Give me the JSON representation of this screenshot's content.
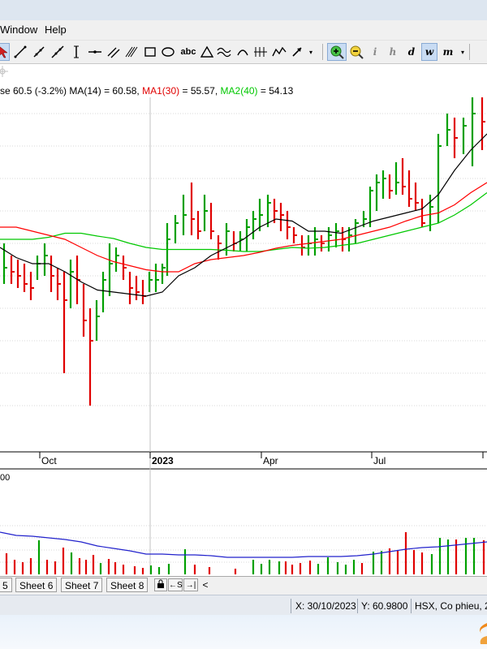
{
  "menu": {
    "items": [
      "Window",
      "Help"
    ]
  },
  "toolbar": {
    "letter_tools": [
      "abc",
      "d",
      "w",
      "m"
    ],
    "italic_tools": [
      "i",
      "h"
    ]
  },
  "legend": {
    "close_partial": "se 60.5 (-3.2%)",
    "ma14_text": "MA(14) = 60.58,",
    "ma1_label": "MA1(30)",
    "ma1_value": " = 55.57,",
    "ma2_label": "MA2(40)",
    "ma2_value": " = 54.13",
    "colors": {
      "ma1": "#ff0000",
      "ma2": "#00c800",
      "ma14": "#000000"
    }
  },
  "chart_data": {
    "type": "bar",
    "x_tick_labels": [
      "Oct",
      "2023",
      "Apr",
      "Jul"
    ],
    "colors": {
      "up": "#00a000",
      "down": "#e00000",
      "ma14": "#000000",
      "ma1": "#ff0000",
      "ma2": "#00c800",
      "volume_ma": "#2222cc"
    },
    "price_bars": [
      {
        "x": 5,
        "h": 50,
        "l": 40,
        "c": 44
      },
      {
        "x": 14,
        "h": 47,
        "l": 40,
        "c": 43
      },
      {
        "x": 22,
        "h": 46,
        "l": 39,
        "c": 42
      },
      {
        "x": 30,
        "h": 45,
        "l": 38,
        "c": 40
      },
      {
        "x": 38,
        "h": 43,
        "l": 36,
        "c": 39
      },
      {
        "x": 46,
        "h": 47,
        "l": 41,
        "c": 45
      },
      {
        "x": 55,
        "h": 50,
        "l": 42,
        "c": 47
      },
      {
        "x": 63,
        "h": 47,
        "l": 38,
        "c": 42
      },
      {
        "x": 71,
        "h": 44,
        "l": 36,
        "c": 40
      },
      {
        "x": 79,
        "h": 43,
        "l": 18,
        "c": 36
      },
      {
        "x": 87,
        "h": 46,
        "l": 34,
        "c": 43
      },
      {
        "x": 95,
        "h": 47,
        "l": 35,
        "c": 41
      },
      {
        "x": 103,
        "h": 40,
        "l": 27,
        "c": 31
      },
      {
        "x": 111,
        "h": 34,
        "l": 10,
        "c": 26
      },
      {
        "x": 119,
        "h": 36,
        "l": 26,
        "c": 32
      },
      {
        "x": 127,
        "h": 43,
        "l": 33,
        "c": 41
      },
      {
        "x": 135,
        "h": 50,
        "l": 37,
        "c": 45
      },
      {
        "x": 143,
        "h": 49,
        "l": 43,
        "c": 47
      },
      {
        "x": 152,
        "h": 47,
        "l": 41,
        "c": 44
      },
      {
        "x": 160,
        "h": 43,
        "l": 35,
        "c": 39
      },
      {
        "x": 168,
        "h": 42,
        "l": 36,
        "c": 38
      },
      {
        "x": 176,
        "h": 41,
        "l": 35,
        "c": 37
      },
      {
        "x": 184,
        "h": 43,
        "l": 38,
        "c": 41
      },
      {
        "x": 192,
        "h": 45,
        "l": 38,
        "c": 41
      },
      {
        "x": 200,
        "h": 45,
        "l": 40,
        "c": 44
      },
      {
        "x": 206,
        "h": 55,
        "l": 42,
        "c": 51
      },
      {
        "x": 216,
        "h": 57,
        "l": 50,
        "c": 55
      },
      {
        "x": 226,
        "h": 62,
        "l": 52,
        "c": 57
      },
      {
        "x": 236,
        "h": 65,
        "l": 52,
        "c": 56
      },
      {
        "x": 244,
        "h": 58,
        "l": 51,
        "c": 53
      },
      {
        "x": 252,
        "h": 62,
        "l": 53,
        "c": 58
      },
      {
        "x": 260,
        "h": 60,
        "l": 51,
        "c": 53
      },
      {
        "x": 269,
        "h": 52,
        "l": 46,
        "c": 50
      },
      {
        "x": 279,
        "h": 55,
        "l": 47,
        "c": 53
      },
      {
        "x": 288,
        "h": 53,
        "l": 48,
        "c": 50
      },
      {
        "x": 296,
        "h": 53,
        "l": 48,
        "c": 51
      },
      {
        "x": 304,
        "h": 56,
        "l": 48,
        "c": 54
      },
      {
        "x": 312,
        "h": 58,
        "l": 51,
        "c": 56
      },
      {
        "x": 320,
        "h": 61,
        "l": 53,
        "c": 57
      },
      {
        "x": 330,
        "h": 62,
        "l": 54,
        "c": 60
      },
      {
        "x": 338,
        "h": 61,
        "l": 55,
        "c": 58
      },
      {
        "x": 346,
        "h": 60,
        "l": 53,
        "c": 57
      },
      {
        "x": 354,
        "h": 58,
        "l": 51,
        "c": 54
      },
      {
        "x": 362,
        "h": 54,
        "l": 50,
        "c": 52
      },
      {
        "x": 372,
        "h": 52,
        "l": 47,
        "c": 49
      },
      {
        "x": 380,
        "h": 52,
        "l": 47,
        "c": 50
      },
      {
        "x": 388,
        "h": 54,
        "l": 47,
        "c": 51
      },
      {
        "x": 396,
        "h": 52,
        "l": 48,
        "c": 50
      },
      {
        "x": 405,
        "h": 54,
        "l": 48,
        "c": 52
      },
      {
        "x": 414,
        "h": 55,
        "l": 49,
        "c": 53
      },
      {
        "x": 422,
        "h": 54,
        "l": 48,
        "c": 51
      },
      {
        "x": 430,
        "h": 54,
        "l": 48,
        "c": 52
      },
      {
        "x": 438,
        "h": 56,
        "l": 50,
        "c": 55
      },
      {
        "x": 448,
        "h": 58,
        "l": 54,
        "c": 56
      },
      {
        "x": 456,
        "h": 64,
        "l": 54,
        "c": 63
      },
      {
        "x": 464,
        "h": 67,
        "l": 58,
        "c": 65
      },
      {
        "x": 472,
        "h": 68,
        "l": 61,
        "c": 66
      },
      {
        "x": 480,
        "h": 67,
        "l": 61,
        "c": 63
      },
      {
        "x": 488,
        "h": 70,
        "l": 62,
        "c": 65
      },
      {
        "x": 496,
        "h": 71,
        "l": 62,
        "c": 64
      },
      {
        "x": 504,
        "h": 68,
        "l": 59,
        "c": 61
      },
      {
        "x": 512,
        "h": 65,
        "l": 58,
        "c": 60
      },
      {
        "x": 520,
        "h": 61,
        "l": 54,
        "c": 55
      },
      {
        "x": 530,
        "h": 62,
        "l": 53,
        "c": 59
      },
      {
        "x": 540,
        "h": 77,
        "l": 55,
        "c": 74
      },
      {
        "x": 551,
        "h": 82,
        "l": 74,
        "c": 78
      },
      {
        "x": 560,
        "h": 81,
        "l": 71,
        "c": 76
      },
      {
        "x": 571,
        "h": 81,
        "l": 72,
        "c": 79
      },
      {
        "x": 582,
        "h": 87,
        "l": 69,
        "c": 82
      },
      {
        "x": 594,
        "h": 87,
        "l": 73,
        "c": 80
      }
    ],
    "ma14": [
      [
        0,
        49
      ],
      [
        20,
        46.5
      ],
      [
        40,
        45
      ],
      [
        60,
        45
      ],
      [
        80,
        43
      ],
      [
        100,
        40.5
      ],
      [
        120,
        38.5
      ],
      [
        140,
        38
      ],
      [
        160,
        37.5
      ],
      [
        180,
        37
      ],
      [
        200,
        38
      ],
      [
        220,
        42
      ],
      [
        240,
        44
      ],
      [
        260,
        47
      ],
      [
        280,
        49
      ],
      [
        300,
        51
      ],
      [
        320,
        54
      ],
      [
        340,
        56
      ],
      [
        360,
        55.5
      ],
      [
        380,
        53
      ],
      [
        400,
        53
      ],
      [
        420,
        52.5
      ],
      [
        440,
        54
      ],
      [
        460,
        55.5
      ],
      [
        480,
        56.5
      ],
      [
        500,
        57.5
      ],
      [
        520,
        58.5
      ],
      [
        540,
        62
      ],
      [
        560,
        68
      ],
      [
        580,
        73
      ],
      [
        600,
        77
      ]
    ],
    "ma1_30": [
      [
        0,
        54
      ],
      [
        20,
        54
      ],
      [
        40,
        53
      ],
      [
        60,
        52
      ],
      [
        80,
        51
      ],
      [
        100,
        49
      ],
      [
        120,
        47
      ],
      [
        140,
        45.5
      ],
      [
        160,
        44.5
      ],
      [
        180,
        43.5
      ],
      [
        200,
        43
      ],
      [
        220,
        43
      ],
      [
        240,
        45
      ],
      [
        260,
        46
      ],
      [
        280,
        46.5
      ],
      [
        300,
        47
      ],
      [
        320,
        47.8
      ],
      [
        340,
        48.8
      ],
      [
        360,
        49.5
      ],
      [
        380,
        50
      ],
      [
        400,
        50.5
      ],
      [
        420,
        51
      ],
      [
        440,
        52
      ],
      [
        460,
        53
      ],
      [
        480,
        54
      ],
      [
        500,
        55.5
      ],
      [
        520,
        56.8
      ],
      [
        540,
        57.5
      ],
      [
        560,
        59.5
      ],
      [
        580,
        62.5
      ],
      [
        600,
        65
      ]
    ],
    "ma2_40": [
      [
        0,
        51
      ],
      [
        40,
        51
      ],
      [
        60,
        51.5
      ],
      [
        80,
        52.5
      ],
      [
        100,
        52.5
      ],
      [
        120,
        51.8
      ],
      [
        140,
        51.2
      ],
      [
        160,
        50
      ],
      [
        180,
        49
      ],
      [
        200,
        48.5
      ],
      [
        220,
        48.5
      ],
      [
        240,
        48.5
      ],
      [
        260,
        48.5
      ],
      [
        280,
        48.3
      ],
      [
        300,
        48
      ],
      [
        320,
        48
      ],
      [
        340,
        48.5
      ],
      [
        360,
        49
      ],
      [
        380,
        48.8
      ],
      [
        400,
        49
      ],
      [
        420,
        49.5
      ],
      [
        440,
        50
      ],
      [
        460,
        51
      ],
      [
        480,
        52
      ],
      [
        500,
        53
      ],
      [
        520,
        54
      ],
      [
        540,
        55
      ],
      [
        560,
        57
      ],
      [
        580,
        59.5
      ],
      [
        600,
        62.5
      ]
    ],
    "volume_axis_label": "00",
    "volume_bars": [
      {
        "x": 8,
        "v": 26,
        "up": false
      },
      {
        "x": 18,
        "v": 18,
        "up": false
      },
      {
        "x": 28,
        "v": 15,
        "up": false
      },
      {
        "x": 38,
        "v": 20,
        "up": false
      },
      {
        "x": 48,
        "v": 42,
        "up": true
      },
      {
        "x": 58,
        "v": 18,
        "up": false
      },
      {
        "x": 68,
        "v": 16,
        "up": false
      },
      {
        "x": 78,
        "v": 33,
        "up": false
      },
      {
        "x": 88,
        "v": 27,
        "up": true
      },
      {
        "x": 98,
        "v": 20,
        "up": false
      },
      {
        "x": 106,
        "v": 18,
        "up": false
      },
      {
        "x": 115,
        "v": 24,
        "up": false
      },
      {
        "x": 124,
        "v": 14,
        "up": true
      },
      {
        "x": 134,
        "v": 19,
        "up": false
      },
      {
        "x": 142,
        "v": 15,
        "up": false
      },
      {
        "x": 152,
        "v": 12,
        "up": false
      },
      {
        "x": 166,
        "v": 10,
        "up": false
      },
      {
        "x": 176,
        "v": 8,
        "up": false
      },
      {
        "x": 186,
        "v": 11,
        "up": true
      },
      {
        "x": 196,
        "v": 9,
        "up": true
      },
      {
        "x": 208,
        "v": 13,
        "up": true
      },
      {
        "x": 228,
        "v": 31,
        "up": true
      },
      {
        "x": 240,
        "v": 12,
        "up": false
      },
      {
        "x": 258,
        "v": 9,
        "up": false
      },
      {
        "x": 290,
        "v": 7,
        "up": false
      },
      {
        "x": 312,
        "v": 18,
        "up": true
      },
      {
        "x": 322,
        "v": 13,
        "up": true
      },
      {
        "x": 332,
        "v": 18,
        "up": true
      },
      {
        "x": 344,
        "v": 16,
        "up": true
      },
      {
        "x": 352,
        "v": 16,
        "up": false
      },
      {
        "x": 360,
        "v": 12,
        "up": false
      },
      {
        "x": 370,
        "v": 14,
        "up": false
      },
      {
        "x": 382,
        "v": 17,
        "up": false
      },
      {
        "x": 392,
        "v": 13,
        "up": true
      },
      {
        "x": 404,
        "v": 21,
        "up": true
      },
      {
        "x": 416,
        "v": 15,
        "up": true
      },
      {
        "x": 426,
        "v": 12,
        "up": true
      },
      {
        "x": 436,
        "v": 18,
        "up": true
      },
      {
        "x": 446,
        "v": 14,
        "up": false
      },
      {
        "x": 460,
        "v": 28,
        "up": true
      },
      {
        "x": 470,
        "v": 29,
        "up": true
      },
      {
        "x": 480,
        "v": 32,
        "up": false
      },
      {
        "x": 490,
        "v": 29,
        "up": false
      },
      {
        "x": 500,
        "v": 52,
        "up": false
      },
      {
        "x": 510,
        "v": 30,
        "up": false
      },
      {
        "x": 520,
        "v": 27,
        "up": false
      },
      {
        "x": 532,
        "v": 25,
        "up": true
      },
      {
        "x": 542,
        "v": 45,
        "up": true
      },
      {
        "x": 552,
        "v": 43,
        "up": true
      },
      {
        "x": 562,
        "v": 43,
        "up": false
      },
      {
        "x": 574,
        "v": 45,
        "up": true
      },
      {
        "x": 584,
        "v": 45,
        "up": true
      },
      {
        "x": 596,
        "v": 42,
        "up": false
      }
    ],
    "volume_ma": [
      [
        0,
        52
      ],
      [
        10,
        50
      ],
      [
        20,
        48
      ],
      [
        40,
        47
      ],
      [
        60,
        45
      ],
      [
        80,
        43
      ],
      [
        100,
        40
      ],
      [
        120,
        35
      ],
      [
        140,
        32
      ],
      [
        160,
        29
      ],
      [
        180,
        25
      ],
      [
        200,
        25
      ],
      [
        220,
        24
      ],
      [
        240,
        24
      ],
      [
        260,
        23
      ],
      [
        280,
        21
      ],
      [
        300,
        21
      ],
      [
        320,
        21
      ],
      [
        340,
        21
      ],
      [
        360,
        21
      ],
      [
        380,
        22
      ],
      [
        400,
        22
      ],
      [
        420,
        22
      ],
      [
        440,
        23
      ],
      [
        460,
        25
      ],
      [
        480,
        28
      ],
      [
        500,
        31
      ],
      [
        520,
        33
      ],
      [
        540,
        34
      ],
      [
        560,
        36
      ],
      [
        580,
        38
      ],
      [
        600,
        40
      ]
    ]
  },
  "sheets": {
    "tabs": [
      "5",
      "Sheet 6",
      "Sheet 7",
      "Sheet 8"
    ],
    "nav": [
      "←S",
      "→|",
      "<"
    ]
  },
  "status": {
    "x_readout": "X: 30/10/2023",
    "y_readout": "Y: 60.9800",
    "exchange": "HSX, Co phieu, 2"
  }
}
